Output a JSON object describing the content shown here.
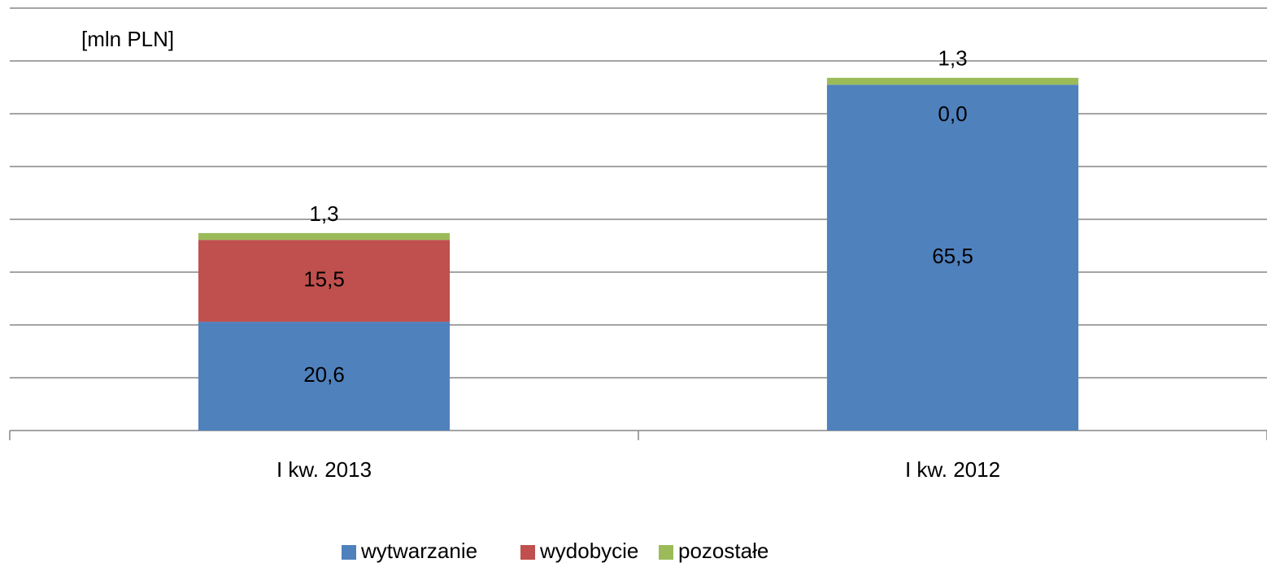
{
  "chart_data": {
    "type": "stacked_bar",
    "y_label": "[mln PLN]",
    "categories": [
      "I kw. 2013",
      "I kw. 2012"
    ],
    "series": [
      {
        "name": "wytwarzanie",
        "color": "#4f81bd",
        "values": [
          20.6,
          65.5
        ],
        "value_labels": [
          "20,6",
          "65,5"
        ]
      },
      {
        "name": "wydobycie",
        "color": "#c0504d",
        "values": [
          15.5,
          0.0
        ],
        "value_labels": [
          "15,5",
          "0,0"
        ]
      },
      {
        "name": "pozostałe",
        "color": "#9bbb59",
        "values": [
          1.3,
          1.3
        ],
        "value_labels": [
          "1,3",
          "1,3"
        ]
      }
    ],
    "ylim": [
      0,
      80
    ],
    "yticks": [
      0,
      10,
      20,
      30,
      40,
      50,
      60,
      70,
      80
    ],
    "grid": true,
    "legend": "bottom"
  }
}
